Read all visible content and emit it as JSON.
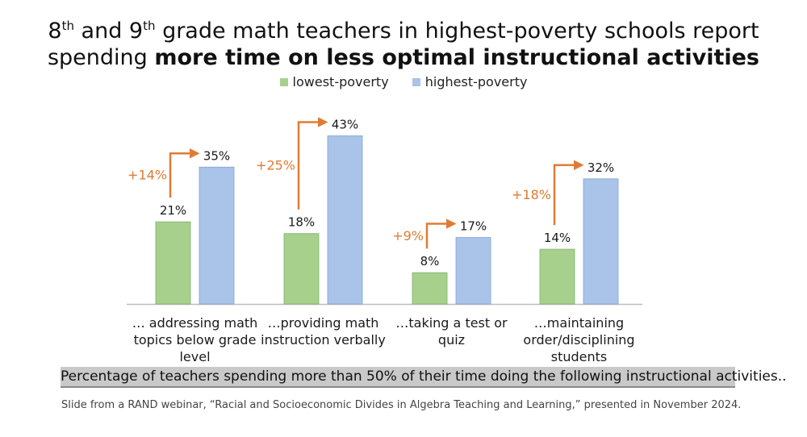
{
  "title": {
    "line1_a": "8",
    "line1_sup1": "th",
    "line1_b": " and 9",
    "line1_sup2": "th",
    "line1_c": " grade math teachers in highest-poverty schools report",
    "line2_a": "spending ",
    "line2_bold": "more time on less optimal instructional activities"
  },
  "legend": [
    {
      "label": "lowest-poverty",
      "color": "#a8d08d"
    },
    {
      "label": "highest-poverty",
      "color": "#a9c4e8"
    }
  ],
  "caption": "Percentage of teachers spending more than 50% of their time doing the following instructional activities..",
  "source": "Slide from a RAND webinar, “Racial and Socioeconomic Divides in Algebra Teaching and Learning,” presented in November 2024.",
  "colors": {
    "low": "#a8d08d",
    "high": "#a9c4e8",
    "diff": "#e07b34"
  },
  "chart_data": {
    "type": "bar",
    "categories": [
      [
        "… addressing math",
        "topics below grade",
        "level"
      ],
      [
        "…providing math",
        "instruction verbally"
      ],
      [
        "…taking a test or",
        "quiz"
      ],
      [
        "…maintaining",
        "order/disciplining",
        "students"
      ]
    ],
    "series": [
      {
        "name": "lowest-poverty",
        "values": [
          21,
          18,
          8,
          14
        ],
        "labels": [
          "21%",
          "18%",
          "8%",
          "14%"
        ]
      },
      {
        "name": "highest-poverty",
        "values": [
          35,
          43,
          17,
          32
        ],
        "labels": [
          "35%",
          "43%",
          "17%",
          "32%"
        ]
      }
    ],
    "differences": [
      "+14%",
      "+25%",
      "+9%",
      "+18%"
    ],
    "ylim": [
      0,
      50
    ],
    "grid": false,
    "legend_position": "top-center"
  }
}
